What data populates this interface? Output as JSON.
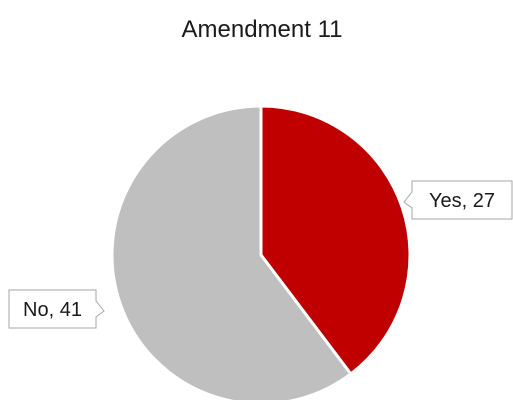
{
  "chart_data": {
    "type": "pie",
    "title": "Amendment 11",
    "categories": [
      "Yes",
      "No"
    ],
    "values": [
      27,
      41
    ],
    "data_labels": [
      "Yes, 27",
      "No, 41"
    ],
    "colors": [
      "#c00000",
      "#bfbfbf"
    ],
    "slice_border_color": "#ffffff",
    "legend": "none",
    "start_angle": "12 o'clock",
    "direction": "clockwise"
  }
}
